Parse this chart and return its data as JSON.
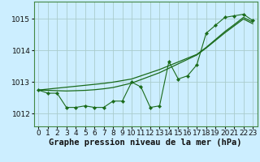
{
  "x": [
    0,
    1,
    2,
    3,
    4,
    5,
    6,
    7,
    8,
    9,
    10,
    11,
    12,
    13,
    14,
    15,
    16,
    17,
    18,
    19,
    20,
    21,
    22,
    23
  ],
  "y_main": [
    1012.75,
    1012.65,
    1012.65,
    1012.2,
    1012.2,
    1012.25,
    1012.2,
    1012.2,
    1012.4,
    1012.4,
    1013.0,
    1012.85,
    1012.2,
    1012.25,
    1013.65,
    1013.1,
    1013.2,
    1013.55,
    1014.55,
    1014.8,
    1015.05,
    1015.1,
    1015.15,
    1014.95
  ],
  "y_smooth1": [
    1012.75,
    1012.78,
    1012.81,
    1012.84,
    1012.87,
    1012.9,
    1012.93,
    1012.96,
    1013.0,
    1013.05,
    1013.1,
    1013.2,
    1013.3,
    1013.4,
    1013.52,
    1013.64,
    1013.76,
    1013.88,
    1014.1,
    1014.35,
    1014.6,
    1014.82,
    1015.05,
    1014.9
  ],
  "y_smooth2": [
    1012.75,
    1012.74,
    1012.73,
    1012.72,
    1012.73,
    1012.74,
    1012.76,
    1012.79,
    1012.83,
    1012.9,
    1012.97,
    1013.08,
    1013.19,
    1013.3,
    1013.44,
    1013.58,
    1013.72,
    1013.86,
    1014.08,
    1014.32,
    1014.56,
    1014.78,
    1015.0,
    1014.85
  ],
  "bg_color": "#cceeff",
  "grid_color": "#aacccc",
  "line_color": "#1a6b1a",
  "xlabel": "Graphe pression niveau de la mer (hPa)",
  "ylim": [
    1011.6,
    1015.55
  ],
  "xlim": [
    -0.5,
    23.5
  ],
  "yticks": [
    1012,
    1013,
    1014,
    1015
  ],
  "xticks": [
    0,
    1,
    2,
    3,
    4,
    5,
    6,
    7,
    8,
    9,
    10,
    11,
    12,
    13,
    14,
    15,
    16,
    17,
    18,
    19,
    20,
    21,
    22,
    23
  ],
  "tick_fontsize": 6.5,
  "xlabel_fontsize": 7.5
}
